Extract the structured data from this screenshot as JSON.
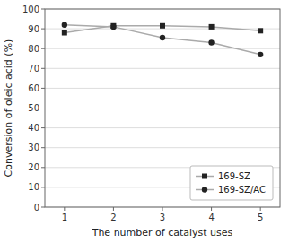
{
  "chart_data": {
    "type": "line",
    "xlabel": "The number of catalyst uses",
    "ylabel": "Conversion of oleic acid (%)",
    "x": [
      1,
      2,
      3,
      4,
      5
    ],
    "series": [
      {
        "name": "169-SZ",
        "color": "#aaaaaa",
        "marker": "square",
        "values": [
          88,
          91.5,
          91.5,
          91,
          89
        ]
      },
      {
        "name": "169-SZ/AC",
        "color": "#aaaaaa",
        "marker": "circle",
        "values": [
          92,
          91,
          85.5,
          83,
          77
        ]
      }
    ],
    "xlim": [
      0.6,
      5.4
    ],
    "xticks": [
      1,
      2,
      3,
      4,
      5
    ],
    "ylim": [
      0,
      100
    ],
    "yticks": [
      0,
      10,
      20,
      30,
      40,
      50,
      60,
      70,
      80,
      90,
      100
    ],
    "grid": "y",
    "legend": "lower right"
  }
}
